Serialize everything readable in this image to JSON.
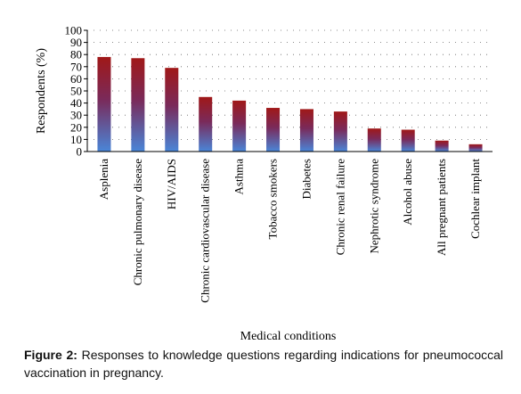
{
  "chart_data": {
    "type": "bar",
    "ylabel": "Respondents (%)",
    "xlabel": "Medical conditions",
    "ylim": [
      0,
      100
    ],
    "yticks": [
      0,
      10,
      20,
      30,
      40,
      50,
      60,
      70,
      80,
      90,
      100
    ],
    "grid": "dotted horizontal",
    "legend": "none",
    "categories": [
      "Asplenia",
      "Chronic pulmonary disease",
      "HIV/AIDS",
      "Chronic cardiovascular disease",
      "Asthma",
      "Tobacco smokers",
      "Diabetes",
      "Chronic renal failure",
      "Nephrotic syndrome",
      "Alcohol abuse",
      "All pregnant patients",
      "Cochlear implant"
    ],
    "values": [
      78,
      77,
      69,
      45,
      42,
      36,
      35,
      33,
      19,
      18,
      9,
      6
    ],
    "colors": {
      "bar_top": "#a01818",
      "bar_bottom": "#4a86d8"
    }
  },
  "caption": {
    "label": "Figure 2:",
    "text": " Responses to knowledge questions regarding indications for pneumococcal vaccination in pregnancy."
  }
}
